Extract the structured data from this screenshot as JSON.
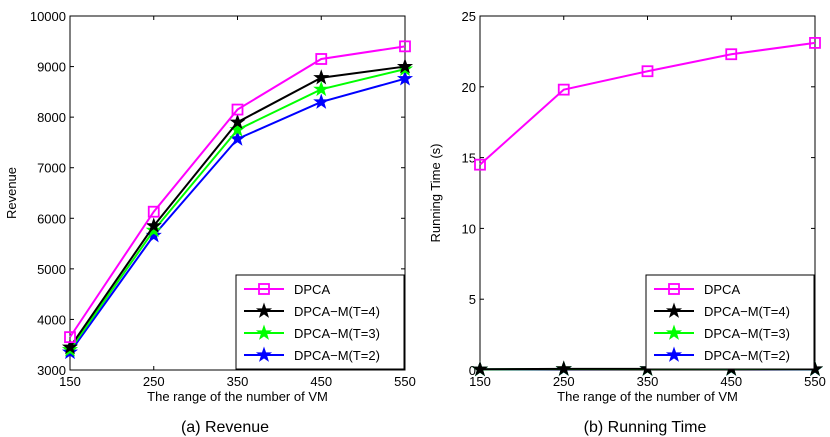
{
  "chart_data": [
    {
      "type": "line",
      "caption": "(a) Revenue",
      "xlabel": "The range of the number of VM",
      "ylabel": "Revenue",
      "x": [
        150,
        250,
        350,
        450,
        550
      ],
      "xlim": [
        150,
        550
      ],
      "ylim": [
        3000,
        10000
      ],
      "xticks": [
        150,
        250,
        350,
        450,
        550
      ],
      "yticks": [
        3000,
        4000,
        5000,
        6000,
        7000,
        8000,
        9000,
        10000
      ],
      "legend_position": "bottom-right",
      "series": [
        {
          "name": "DPCA",
          "color": "#ff00ff",
          "marker": "square",
          "values": [
            3650,
            6130,
            8150,
            9150,
            9400
          ]
        },
        {
          "name": "DPCA−M(T=4)",
          "color": "#000000",
          "marker": "star",
          "values": [
            3450,
            5850,
            7900,
            8780,
            9000
          ]
        },
        {
          "name": "DPCA−M(T=3)",
          "color": "#00ff00",
          "marker": "star",
          "values": [
            3400,
            5760,
            7750,
            8550,
            8950
          ]
        },
        {
          "name": "DPCA−M(T=2)",
          "color": "#0000ff",
          "marker": "star",
          "values": [
            3350,
            5660,
            7570,
            8300,
            8760
          ]
        }
      ]
    },
    {
      "type": "line",
      "caption": "(b) Running Time",
      "xlabel": "The range of the number of VM",
      "ylabel": "Running Time (s)",
      "x": [
        150,
        250,
        350,
        450,
        550
      ],
      "xlim": [
        150,
        550
      ],
      "ylim": [
        0,
        25
      ],
      "xticks": [
        150,
        250,
        350,
        450,
        550
      ],
      "yticks": [
        0,
        5,
        10,
        15,
        20,
        25
      ],
      "legend_position": "bottom-right",
      "series": [
        {
          "name": "DPCA",
          "color": "#ff00ff",
          "marker": "square",
          "values": [
            14.5,
            19.8,
            21.1,
            22.3,
            23.1
          ]
        },
        {
          "name": "DPCA−M(T=4)",
          "color": "#000000",
          "marker": "star",
          "values": [
            0.05,
            0.08,
            0.08,
            0.09,
            0.07
          ]
        },
        {
          "name": "DPCA−M(T=3)",
          "color": "#00ff00",
          "marker": "star",
          "values": [
            0.04,
            0.07,
            0.07,
            0.08,
            0.06
          ]
        },
        {
          "name": "DPCA−M(T=2)",
          "color": "#0000ff",
          "marker": "star",
          "values": [
            0.04,
            0.06,
            0.07,
            0.07,
            0.05
          ]
        }
      ]
    }
  ]
}
